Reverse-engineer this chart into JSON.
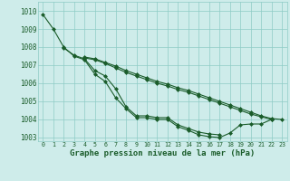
{
  "title": "Graphe pression niveau de la mer (hPa)",
  "ylim": [
    1002.8,
    1010.5
  ],
  "yticks": [
    1003,
    1004,
    1005,
    1006,
    1007,
    1008,
    1009,
    1010
  ],
  "background_color": "#ceecea",
  "grid_color": "#8ecbc6",
  "line_color": "#1a5c2a",
  "line1": [
    1009.8,
    1009.0,
    1008.0,
    1007.5,
    1007.3,
    1006.5,
    1006.1,
    1005.2,
    1004.6,
    1004.1,
    1004.1,
    1004.0,
    1004.0,
    1003.6,
    1003.4,
    1003.15,
    1003.05,
    1003.0,
    1003.25,
    1003.7,
    1003.75,
    1003.75,
    1004.0,
    null
  ],
  "line2": [
    null,
    null,
    1007.95,
    1007.55,
    1007.35,
    1006.7,
    1006.4,
    1005.7,
    1004.7,
    1004.2,
    1004.2,
    1004.1,
    1004.1,
    1003.7,
    1003.5,
    1003.3,
    1003.2,
    1003.15,
    null,
    null,
    null,
    null,
    null,
    null
  ],
  "line3": [
    null,
    null,
    null,
    null,
    1007.4,
    1007.3,
    1007.1,
    1006.85,
    1006.6,
    1006.4,
    1006.2,
    1006.0,
    1005.85,
    1005.65,
    1005.5,
    1005.3,
    1005.1,
    1004.9,
    1004.7,
    1004.5,
    1004.3,
    1004.15,
    1004.0,
    null
  ],
  "line4": [
    null,
    null,
    null,
    null,
    1007.45,
    1007.35,
    1007.15,
    1006.95,
    1006.7,
    1006.5,
    1006.3,
    1006.1,
    1005.95,
    1005.75,
    1005.6,
    1005.4,
    1005.2,
    1005.0,
    1004.8,
    1004.6,
    1004.4,
    1004.2,
    1004.05,
    1004.0
  ]
}
